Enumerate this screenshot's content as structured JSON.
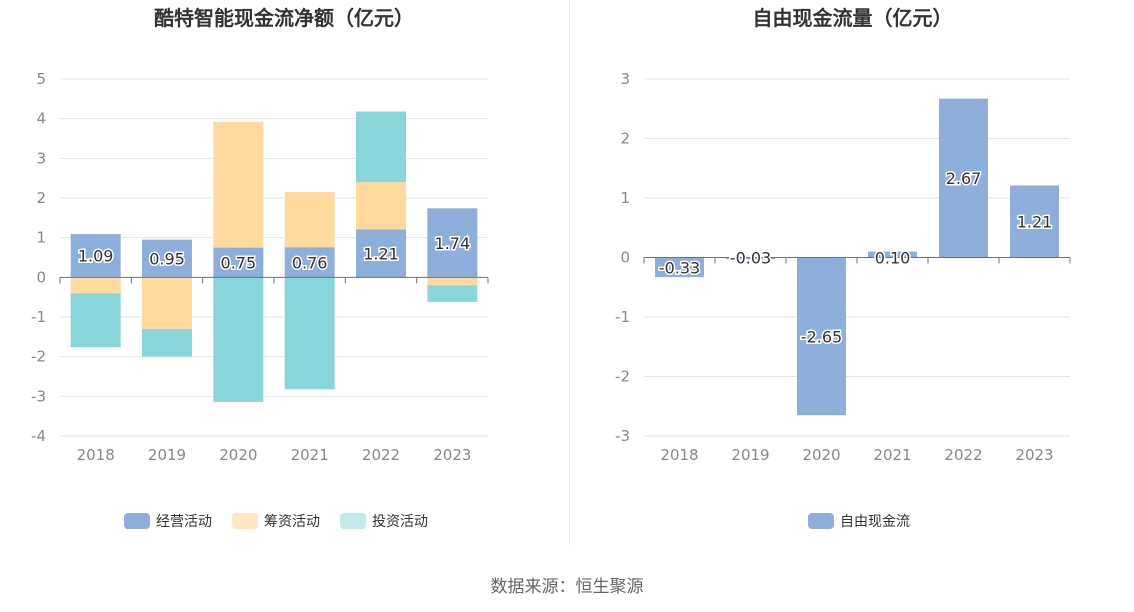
{
  "left_chart": {
    "title": "酷特智能现金流净额（亿元）",
    "chart_data": {
      "type": "bar",
      "stacked": true,
      "categories": [
        "2018",
        "2019",
        "2020",
        "2021",
        "2022",
        "2023"
      ],
      "series": [
        {
          "name": "经营活动",
          "color": "#8eaedb",
          "values": [
            1.09,
            0.95,
            0.75,
            0.76,
            1.21,
            1.74
          ]
        },
        {
          "name": "筹资活动",
          "color": "#ffd99e",
          "values": [
            -0.4,
            -1.3,
            3.17,
            1.39,
            1.19,
            -0.2
          ]
        },
        {
          "name": "投资活动",
          "color": "#88d6da",
          "values": [
            -1.36,
            -0.7,
            -3.14,
            -2.82,
            1.78,
            -0.42
          ]
        }
      ],
      "data_labels": [
        "1.09",
        "0.95",
        "0.75",
        "0.76",
        "1.21",
        "1.74"
      ],
      "ylim": [
        -4,
        5
      ],
      "yticks": [
        "5",
        "4",
        "3",
        "2",
        "1",
        "0",
        "-1",
        "-2",
        "-3",
        "-4"
      ],
      "legend": [
        "经营活动",
        "筹资活动",
        "投资活动"
      ],
      "legend_colors": [
        "#8eaedb",
        "#ffe7c4",
        "#c2e9eb"
      ],
      "legend_position": "bottom",
      "grid": true
    }
  },
  "right_chart": {
    "title": "自由现金流量（亿元）",
    "chart_data": {
      "type": "bar",
      "categories": [
        "2018",
        "2019",
        "2020",
        "2021",
        "2022",
        "2023"
      ],
      "series": [
        {
          "name": "自由现金流",
          "color": "#8eaedb",
          "values": [
            -0.33,
            -0.03,
            -2.65,
            0.1,
            2.67,
            1.21
          ]
        }
      ],
      "data_labels": [
        "-0.33",
        "-0.03",
        "-2.65",
        "0.10",
        "2.67",
        "1.21"
      ],
      "ylim": [
        -3,
        3
      ],
      "yticks": [
        "3",
        "2",
        "1",
        "0",
        "-1",
        "-2",
        "-3"
      ],
      "legend": [
        "自由现金流"
      ],
      "legend_colors": [
        "#8eaedb"
      ],
      "legend_position": "bottom",
      "grid": true
    }
  },
  "source": "数据来源：恒生聚源"
}
